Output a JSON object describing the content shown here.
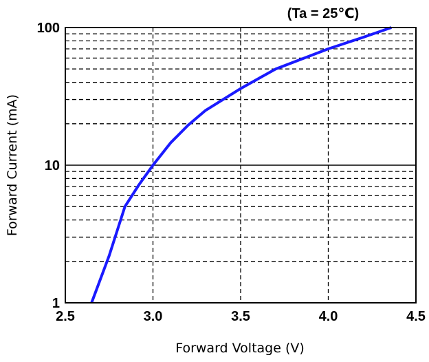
{
  "chart_data": {
    "type": "line",
    "title": "",
    "annotation": "(Ta  =  25℃)",
    "xlabel": "Forward Voltage (V)",
    "ylabel": "Forward Current (mA)",
    "xlim": [
      2.5,
      4.5
    ],
    "ylim": [
      1,
      100
    ],
    "y_scale": "log",
    "x_ticks": [
      "2.5",
      "3.0",
      "3.5",
      "4.0",
      "4.5"
    ],
    "y_ticks": [
      "1",
      "10",
      "100"
    ],
    "grid": true,
    "legend": "none",
    "series": [
      {
        "color": "#1a1aff",
        "x": [
          2.65,
          2.75,
          2.84,
          2.92,
          3.0,
          3.1,
          3.2,
          3.3,
          3.5,
          3.7,
          4.0,
          4.2,
          4.36
        ],
        "y": [
          1,
          2.2,
          5,
          7.2,
          10,
          14.5,
          19.5,
          25,
          36,
          50,
          70,
          85,
          100
        ]
      }
    ]
  }
}
